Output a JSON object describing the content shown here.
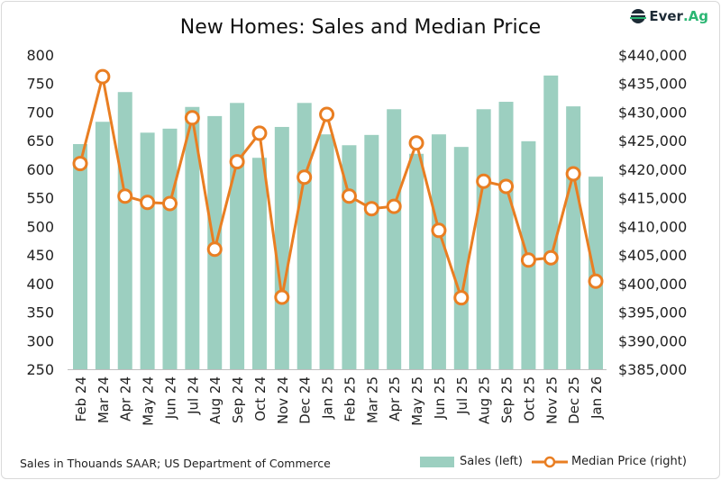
{
  "logo": {
    "text_main": "Ever",
    "text_accent": ".Ag"
  },
  "footer": {
    "source": "Sales in Thouands SAAR; US Department of Commerce"
  },
  "colors": {
    "bars": "#9ccfc0",
    "line": "#e97e22",
    "marker_fill": "#ffffff",
    "logo_green": "#2bb673"
  },
  "chart_data": {
    "type": "bar+line",
    "title": "New Homes: Sales and Median Price",
    "categories": [
      "Feb 24",
      "Mar 24",
      "Apr 24",
      "May 24",
      "Jun 24",
      "Jul 24",
      "Aug 24",
      "Sep 24",
      "Oct 24",
      "Nov 24",
      "Dec 24",
      "Jan 25",
      "Feb 25",
      "Mar 25",
      "Apr 25",
      "May 25",
      "Jun 25",
      "Jul 25",
      "Aug 25",
      "Sep 25",
      "Oct 25",
      "Nov 25",
      "Dec 25",
      "Jan 26"
    ],
    "series": [
      {
        "name": "Sales (left)",
        "type": "bar",
        "axis": "left",
        "values": [
          644,
          683,
          735,
          664,
          671,
          709,
          693,
          716,
          620,
          674,
          716,
          661,
          642,
          660,
          705,
          627,
          661,
          639,
          705,
          718,
          649,
          764,
          710,
          587
        ]
      },
      {
        "name": "Median Price (right)",
        "type": "line",
        "axis": "right",
        "values": [
          421000,
          436200,
          415300,
          414200,
          414000,
          429000,
          406000,
          421300,
          426300,
          397600,
          418600,
          429600,
          415300,
          413100,
          413500,
          424600,
          409300,
          397500,
          417900,
          417000,
          404100,
          404500,
          419200,
          400400
        ]
      }
    ],
    "y_left": {
      "range": [
        250,
        800
      ],
      "ticks": [
        "250",
        "300",
        "350",
        "400",
        "450",
        "500",
        "550",
        "600",
        "650",
        "700",
        "750",
        "800"
      ]
    },
    "y_right": {
      "range": [
        385000,
        440000
      ],
      "ticks": [
        "$385,000",
        "$390,000",
        "$395,000",
        "$400,000",
        "$405,000",
        "$410,000",
        "$415,000",
        "$420,000",
        "$425,000",
        "$430,000",
        "$435,000",
        "$440,000"
      ]
    },
    "grid": false,
    "legend": "bottom-right"
  }
}
